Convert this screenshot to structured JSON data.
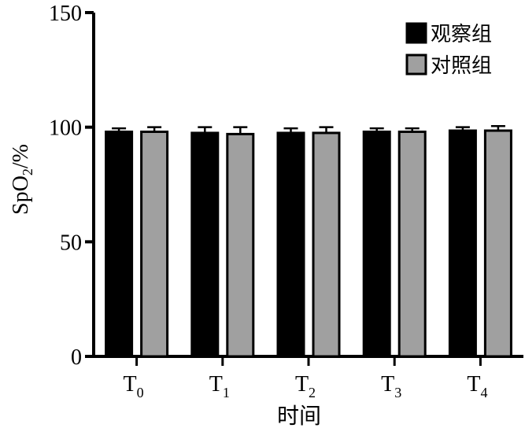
{
  "chart_data": {
    "type": "bar",
    "categories": [
      {
        "base": "T",
        "sub": "0"
      },
      {
        "base": "T",
        "sub": "1"
      },
      {
        "base": "T",
        "sub": "2"
      },
      {
        "base": "T",
        "sub": "3"
      },
      {
        "base": "T",
        "sub": "4"
      }
    ],
    "series": [
      {
        "name": "观察组",
        "color": "#000000",
        "values": [
          98,
          97.5,
          97.5,
          98,
          98.5
        ],
        "errors": [
          1.5,
          2.5,
          2,
          1.5,
          1.5
        ]
      },
      {
        "name": "对照组",
        "color": "#a0a0a0",
        "values": [
          98,
          97,
          97.5,
          98,
          98.5
        ],
        "errors": [
          2,
          3,
          2.5,
          1.5,
          2
        ]
      }
    ],
    "xlabel": "时间",
    "ylabel": {
      "base": "SpO",
      "sub": "2",
      "tail": "/%"
    },
    "ylim": [
      0,
      150
    ],
    "yticks": [
      0,
      50,
      100,
      150
    ],
    "grid": false,
    "legend_position": "top-right"
  }
}
